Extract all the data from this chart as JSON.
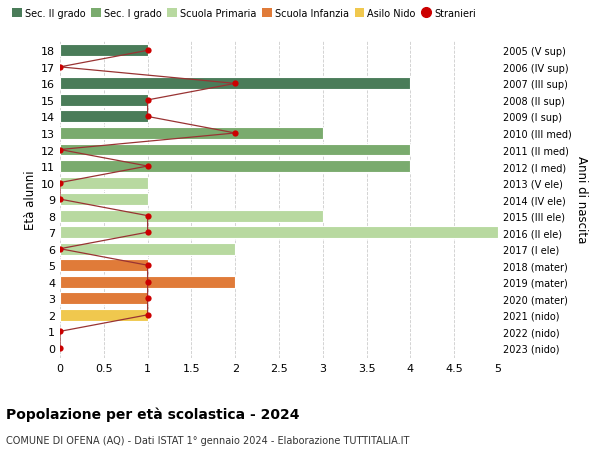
{
  "ages": [
    18,
    17,
    16,
    15,
    14,
    13,
    12,
    11,
    10,
    9,
    8,
    7,
    6,
    5,
    4,
    3,
    2,
    1,
    0
  ],
  "years": [
    "2005 (V sup)",
    "2006 (IV sup)",
    "2007 (III sup)",
    "2008 (II sup)",
    "2009 (I sup)",
    "2010 (III med)",
    "2011 (II med)",
    "2012 (I med)",
    "2013 (V ele)",
    "2014 (IV ele)",
    "2015 (III ele)",
    "2016 (II ele)",
    "2017 (I ele)",
    "2018 (mater)",
    "2019 (mater)",
    "2020 (mater)",
    "2021 (nido)",
    "2022 (nido)",
    "2023 (nido)"
  ],
  "bar_values": [
    1,
    0,
    4,
    1,
    1,
    3,
    4,
    4,
    1,
    1,
    3,
    5,
    2,
    1,
    2,
    1,
    1,
    0,
    0
  ],
  "bar_colors": [
    "#4a7c59",
    "#4a7c59",
    "#4a7c59",
    "#4a7c59",
    "#4a7c59",
    "#7aab6e",
    "#7aab6e",
    "#7aab6e",
    "#b8d9a0",
    "#b8d9a0",
    "#b8d9a0",
    "#b8d9a0",
    "#b8d9a0",
    "#e07b39",
    "#e07b39",
    "#e07b39",
    "#f0c84e",
    "#f0c84e",
    "#f0c84e"
  ],
  "stranieri_values": [
    1,
    0,
    2,
    1,
    1,
    2,
    0,
    1,
    0,
    0,
    1,
    1,
    0,
    1,
    1,
    1,
    1,
    0,
    0
  ],
  "stranieri_color": "#cc0000",
  "line_color": "#993333",
  "title": "Popolazione per età scolastica - 2024",
  "subtitle": "COMUNE DI OFENA (AQ) - Dati ISTAT 1° gennaio 2024 - Elaborazione TUTTITALIA.IT",
  "ylabel": "Età alunni",
  "right_label": "Anni di nascita",
  "xlim": [
    0,
    5.0
  ],
  "xticks": [
    0,
    0.5,
    1.0,
    1.5,
    2.0,
    2.5,
    3.0,
    3.5,
    4.0,
    4.5,
    5.0
  ],
  "bg_color": "#ffffff",
  "grid_color": "#cccccc",
  "legend_items": [
    {
      "label": "Sec. II grado",
      "color": "#4a7c59"
    },
    {
      "label": "Sec. I grado",
      "color": "#7aab6e"
    },
    {
      "label": "Scuola Primaria",
      "color": "#b8d9a0"
    },
    {
      "label": "Scuola Infanzia",
      "color": "#e07b39"
    },
    {
      "label": "Asilo Nido",
      "color": "#f0c84e"
    },
    {
      "label": "Stranieri",
      "color": "#cc0000"
    }
  ]
}
